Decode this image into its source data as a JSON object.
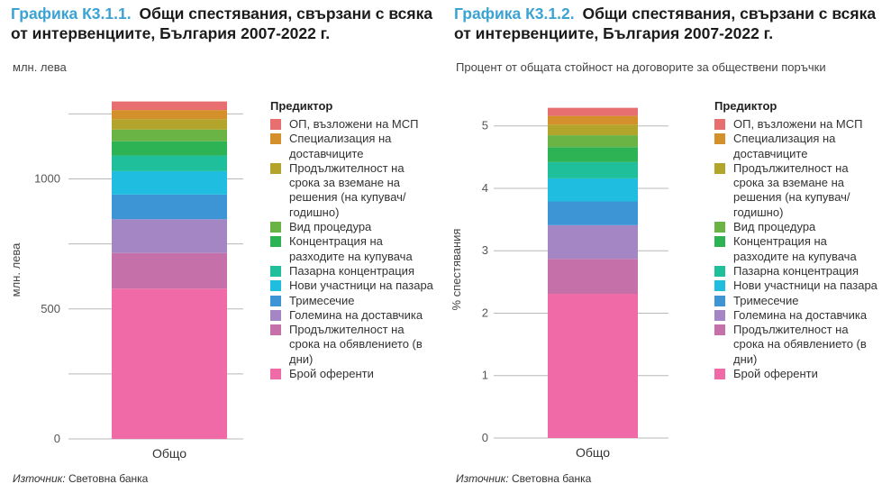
{
  "predictors": [
    {
      "label": "ОП, възложени на МСП",
      "color": "#e86f6f"
    },
    {
      "label": "Специализация на доставчиците",
      "color": "#d4902a"
    },
    {
      "label": "Продължителност на срока за вземане на решения (на купувач/ годишно)",
      "color": "#b3a52c"
    },
    {
      "label": "Вид процедура",
      "color": "#6ab445"
    },
    {
      "label": "Концентрация на разходите на купувача",
      "color": "#2eb354"
    },
    {
      "label": "Пазарна концентрация",
      "color": "#1fbf9b"
    },
    {
      "label": "Нови участници на пазара",
      "color": "#1fbde0"
    },
    {
      "label": "Тримесечие",
      "color": "#3e95d6"
    },
    {
      "label": "Големина на доставчика",
      "color": "#a486c5"
    },
    {
      "label": "Продължителност на срока на обявлението (в дни)",
      "color": "#c570a8"
    },
    {
      "label": "Брой оференти",
      "color": "#ef6aa7"
    }
  ],
  "legend_title": "Предиктор",
  "chart_data": [
    {
      "type": "bar",
      "stacked": true,
      "title_number": "Графика К3.1.1.",
      "title": "Общи спестявания, свързани с всяка от интервенциите, България 2007-2022 г.",
      "unit_note": "млн. лева",
      "ylabel": "млн. лева",
      "xlabel": "",
      "categories": [
        "Общо"
      ],
      "ylim": [
        0,
        1300
      ],
      "yticks": [
        0,
        500,
        1000
      ],
      "gridlines": [
        0,
        250,
        500,
        750,
        1000,
        1250
      ],
      "series": [
        {
          "name": "Брой оференти",
          "values": [
            578
          ]
        },
        {
          "name": "Продължителност на срока на обявлението (в дни)",
          "values": [
            137
          ]
        },
        {
          "name": "Големина на доставчика",
          "values": [
            130
          ]
        },
        {
          "name": "Тримесечие",
          "values": [
            95
          ]
        },
        {
          "name": "Нови участници на пазара",
          "values": [
            90
          ]
        },
        {
          "name": "Пазарна концентрация",
          "values": [
            60
          ]
        },
        {
          "name": "Концентрация на разходите на купувача",
          "values": [
            55
          ]
        },
        {
          "name": "Вид процедура",
          "values": [
            45
          ]
        },
        {
          "name": "Продължителност на срока за вземане на решения (на купувач/ годишно)",
          "values": [
            40
          ]
        },
        {
          "name": "Специализация на доставчиците",
          "values": [
            35
          ]
        },
        {
          "name": "ОП, възложени на МСП",
          "values": [
            33
          ]
        }
      ],
      "source_label": "Източник:",
      "source_text": " Световна банка"
    },
    {
      "type": "bar",
      "stacked": true,
      "title_number": "Графика К3.1.2.",
      "title": "Общи спестявания, свързани с всяка от интервенциите, България 2007-2022 г.",
      "unit_note": "Процент от общата стойност на договорите за обществени поръчки",
      "ylabel": "% спестявания",
      "xlabel": "",
      "categories": [
        "Общо"
      ],
      "ylim": [
        0,
        5.4
      ],
      "yticks": [
        0,
        1,
        2,
        3,
        4,
        5
      ],
      "gridlines": [
        0,
        1,
        2,
        3,
        4,
        5
      ],
      "series": [
        {
          "name": "Брой оференти",
          "values": [
            2.31
          ]
        },
        {
          "name": "Продължителност на срока на обявлението (в дни)",
          "values": [
            0.56
          ]
        },
        {
          "name": "Големина на доставчика",
          "values": [
            0.54
          ]
        },
        {
          "name": "Тримесечие",
          "values": [
            0.38
          ]
        },
        {
          "name": "Нови участници на пазара",
          "values": [
            0.37
          ]
        },
        {
          "name": "Пазарна концентрация",
          "values": [
            0.26
          ]
        },
        {
          "name": "Концентрация на разходите на купувача",
          "values": [
            0.24
          ]
        },
        {
          "name": "Вид процедура",
          "values": [
            0.19
          ]
        },
        {
          "name": "Продължителност на срока за вземане на решения (на купувач/ годишно)",
          "values": [
            0.17
          ]
        },
        {
          "name": "Специализация на доставчиците",
          "values": [
            0.14
          ]
        },
        {
          "name": "ОП, възложени на МСП",
          "values": [
            0.13
          ]
        }
      ],
      "source_label": "Източник:",
      "source_text": " Световна банка"
    }
  ]
}
